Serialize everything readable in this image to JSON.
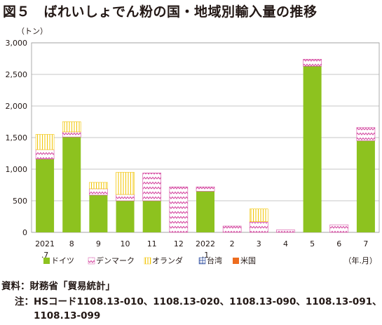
{
  "title": "図５　ばれいしょでん粉の国・地域別輸入量の推移",
  "source": "資料：財務省「貿易統計」",
  "note": {
    "label": "注：",
    "text_line1": "HSコード1108.13-010、1108.13-020、1108.13-090、1108.13-091、",
    "text_line2": "1108.13-099"
  },
  "chart_data": {
    "type": "bar",
    "stacked": true,
    "ylabel": "（トン）",
    "xlabel": "（年.月）",
    "ylim": [
      0,
      3000
    ],
    "yticks": [
      0,
      500,
      1000,
      1500,
      2000,
      2500,
      3000
    ],
    "ytick_labels": [
      "0",
      "500",
      "1,000",
      "1,500",
      "2,000",
      "2,500",
      "3,000"
    ],
    "categories": [
      "2021\n.7",
      "8",
      "9",
      "10",
      "11",
      "12",
      "2022\n.1",
      "2",
      "3",
      "4",
      "5",
      "6",
      "7"
    ],
    "grid": "horizontal",
    "legend_position": "bottom",
    "series": [
      {
        "name": "ドイツ",
        "pattern": "solid",
        "color": "#8dc21f",
        "values": [
          1160,
          1510,
          590,
          500,
          500,
          0,
          650,
          0,
          0,
          0,
          2630,
          0,
          1450
        ]
      },
      {
        "name": "デンマーク",
        "pattern": "zigzag",
        "color": "#d64fa4",
        "values": [
          150,
          80,
          100,
          100,
          440,
          720,
          70,
          100,
          170,
          40,
          110,
          120,
          210
        ]
      },
      {
        "name": "オランダ",
        "pattern": "vertical-lines",
        "color": "#f2c400",
        "values": [
          240,
          160,
          100,
          350,
          0,
          0,
          0,
          0,
          200,
          0,
          0,
          0,
          0
        ]
      },
      {
        "name": "台湾",
        "pattern": "hatch-grid",
        "color": "#2e4ea0",
        "values": [
          0,
          0,
          0,
          0,
          0,
          0,
          0,
          0,
          0,
          0,
          0,
          0,
          0
        ]
      },
      {
        "name": "米国",
        "pattern": "solid",
        "color": "#ed6c1f",
        "values": [
          0,
          0,
          0,
          0,
          0,
          0,
          0,
          0,
          0,
          0,
          0,
          0,
          0
        ]
      }
    ]
  }
}
